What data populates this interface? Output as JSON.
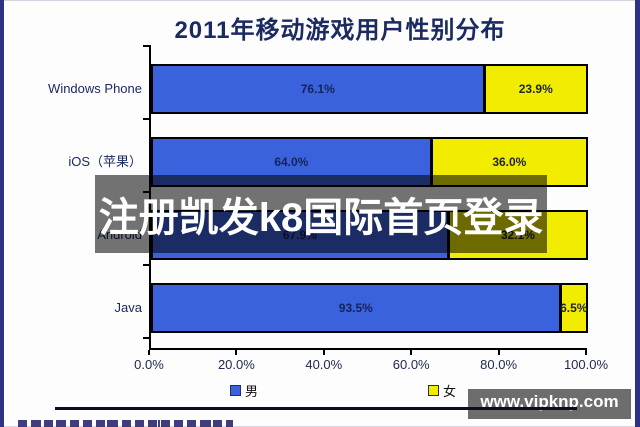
{
  "chart_data": {
    "type": "bar",
    "orientation": "horizontal",
    "stacked": true,
    "title": "2011年移动游戏用户性别分布",
    "categories": [
      "Windows Phone",
      "iOS（苹果）",
      "Android",
      "Java"
    ],
    "series": [
      {
        "name": "男",
        "color": "#3a62dc",
        "values": [
          76.1,
          64.0,
          67.9,
          93.5
        ],
        "labels": [
          "76.1%",
          "64.0%",
          "67.9%",
          "93.5%"
        ]
      },
      {
        "name": "女",
        "color": "#f2ec00",
        "values": [
          23.9,
          36.0,
          32.1,
          6.5
        ],
        "labels": [
          "23.9%",
          "36.0%",
          "32.1%",
          "6.5%"
        ]
      }
    ],
    "x_ticks": [
      "0.0%",
      "20.0%",
      "40.0%",
      "60.0%",
      "80.0%",
      "100.0%"
    ],
    "xlim": [
      0,
      100
    ],
    "grid": false,
    "legend_position": "bottom"
  },
  "overlays": {
    "banner_text": "注册凯发k8国际首页登录",
    "site_watermark": "www.vipknp.com"
  },
  "colors": {
    "bar_male": "#3a62dc",
    "bar_female": "#f2ec00",
    "frame_border": "#2d3384",
    "text_navy": "#1b2a62",
    "overlay_gray": "rgba(0,0,0,0.55)"
  }
}
